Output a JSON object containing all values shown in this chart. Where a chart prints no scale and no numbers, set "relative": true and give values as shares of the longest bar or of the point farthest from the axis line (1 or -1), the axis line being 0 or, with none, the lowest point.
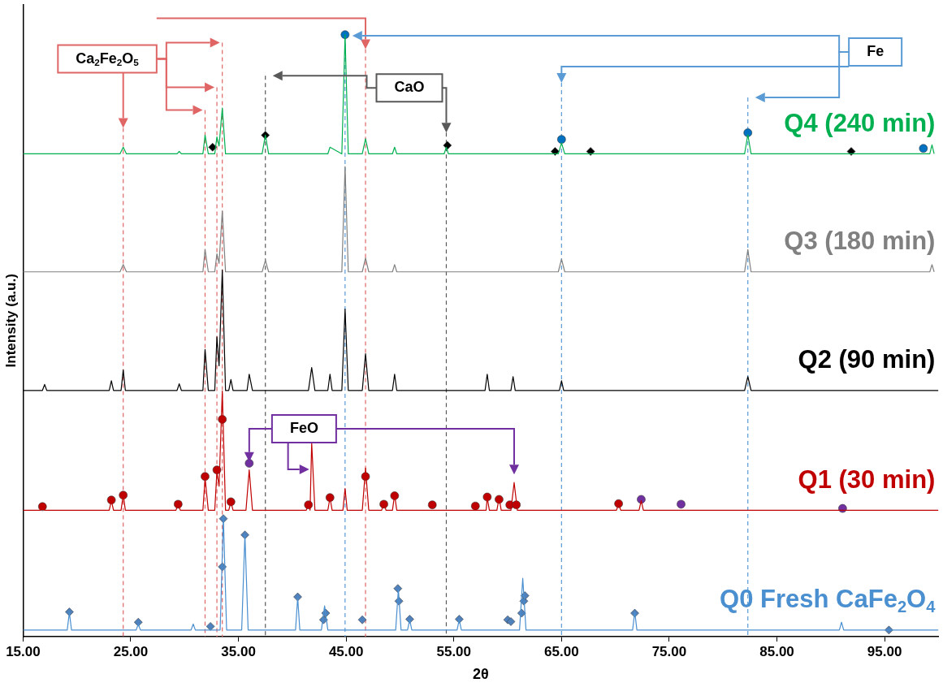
{
  "chart_data": {
    "type": "line",
    "relative": true,
    "xlabel": "2θ",
    "ylabel": "Intensity (a.u.)",
    "xlim": [
      15,
      100
    ],
    "xticks": [
      {
        "value": 15,
        "label": "15.00"
      },
      {
        "value": 25,
        "label": "25.00"
      },
      {
        "value": 35,
        "label": "35.00"
      },
      {
        "value": 45,
        "label": "45.00"
      },
      {
        "value": 55,
        "label": "55.00"
      },
      {
        "value": 65,
        "label": "65.00"
      },
      {
        "value": 75,
        "label": "75.00"
      },
      {
        "value": 85,
        "label": "85.00"
      },
      {
        "value": 95,
        "label": "95.00"
      }
    ],
    "series": [
      {
        "name": "Q4 (240 min)",
        "color": "#00b050",
        "x": [
          15,
          24.0,
          24.3,
          24.6,
          29.3,
          29.5,
          29.7,
          31.7,
          31.9,
          32.2,
          32.8,
          33.0,
          33.2,
          33.5,
          33.8,
          37.2,
          37.5,
          37.8,
          43.3,
          43.5,
          44.6,
          44.9,
          45.2,
          46.5,
          46.8,
          47.1,
          49.3,
          49.5,
          49.7,
          54.1,
          54.3,
          54.5,
          64.7,
          65.0,
          65.3,
          82.0,
          82.3,
          82.6,
          99.2,
          99.4,
          99.6
        ],
        "values": [
          0.802,
          0.802,
          0.813,
          0.802,
          0.802,
          0.806,
          0.802,
          0.802,
          0.833,
          0.802,
          0.802,
          0.83,
          0.815,
          0.878,
          0.802,
          0.802,
          0.833,
          0.802,
          0.802,
          0.813,
          0.802,
          1.0,
          0.802,
          0.802,
          0.827,
          0.802,
          0.802,
          0.813,
          0.802,
          0.802,
          0.813,
          0.802,
          0.802,
          0.82,
          0.802,
          0.802,
          0.834,
          0.802,
          0.802,
          0.817,
          0.802
        ]
      },
      {
        "name": "Q3 (180 min)",
        "color": "#808080",
        "x": [
          15,
          24.0,
          24.3,
          24.6,
          31.7,
          31.9,
          32.2,
          32.8,
          33.0,
          33.2,
          33.5,
          33.8,
          37.2,
          37.5,
          37.8,
          44.6,
          44.9,
          45.2,
          46.5,
          46.8,
          47.1,
          49.3,
          49.5,
          49.7,
          64.7,
          65.0,
          65.3,
          82.0,
          82.3,
          82.6,
          99.2,
          99.4,
          99.6
        ],
        "values": [
          0.606,
          0.606,
          0.618,
          0.606,
          0.606,
          0.643,
          0.606,
          0.606,
          0.636,
          0.62,
          0.707,
          0.606,
          0.606,
          0.625,
          0.606,
          0.606,
          0.781,
          0.606,
          0.606,
          0.629,
          0.606,
          0.606,
          0.618,
          0.606,
          0.606,
          0.627,
          0.606,
          0.606,
          0.643,
          0.606,
          0.606,
          0.618,
          0.606
        ]
      },
      {
        "name": "Q2 (90 min)",
        "color": "#000000",
        "x": [
          15,
          16.8,
          17.0,
          17.2,
          23.0,
          23.2,
          23.4,
          24.1,
          24.3,
          24.5,
          29.3,
          29.5,
          29.7,
          31.7,
          31.9,
          32.2,
          32.8,
          33.0,
          33.2,
          33.5,
          33.8,
          34.1,
          34.3,
          34.5,
          35.8,
          36.0,
          36.3,
          41.5,
          41.8,
          42.1,
          43.3,
          43.5,
          43.7,
          44.6,
          44.9,
          45.2,
          46.5,
          46.8,
          47.1,
          49.3,
          49.5,
          49.7,
          57.9,
          58.1,
          58.3,
          60.3,
          60.5,
          60.7,
          64.8,
          65.0,
          65.2,
          82.0,
          82.3,
          82.6,
          100
        ],
        "values": [
          0.409,
          0.409,
          0.419,
          0.409,
          0.409,
          0.425,
          0.409,
          0.409,
          0.443,
          0.409,
          0.409,
          0.42,
          0.409,
          0.409,
          0.477,
          0.409,
          0.409,
          0.498,
          0.45,
          0.609,
          0.409,
          0.409,
          0.427,
          0.409,
          0.409,
          0.436,
          0.409,
          0.409,
          0.447,
          0.409,
          0.409,
          0.436,
          0.409,
          0.409,
          0.544,
          0.409,
          0.409,
          0.47,
          0.409,
          0.409,
          0.436,
          0.409,
          0.409,
          0.436,
          0.409,
          0.409,
          0.432,
          0.409,
          0.409,
          0.425,
          0.409,
          0.409,
          0.432,
          0.409,
          0.409
        ]
      },
      {
        "name": "Q1 (30 min)",
        "color": "#c00000",
        "x": [
          15,
          16.6,
          16.8,
          17.0,
          23.0,
          23.2,
          23.4,
          24.1,
          24.3,
          24.5,
          29.2,
          29.4,
          29.6,
          31.7,
          31.9,
          32.2,
          32.8,
          33.0,
          33.2,
          33.5,
          33.8,
          34.1,
          34.3,
          34.5,
          35.7,
          36.0,
          36.3,
          41.3,
          41.5,
          41.65,
          41.8,
          42.1,
          43.3,
          43.5,
          43.7,
          44.7,
          44.9,
          45.1,
          46.5,
          46.8,
          47.1,
          48.3,
          48.5,
          48.7,
          49.3,
          49.5,
          49.7,
          58.0,
          58.1,
          58.3,
          59.0,
          59.2,
          59.4,
          60.3,
          60.6,
          60.9,
          70.1,
          70.3,
          70.5,
          72.2,
          72.4,
          72.6,
          100
        ],
        "values": [
          0.21,
          0.21,
          0.219,
          0.21,
          0.21,
          0.226,
          0.21,
          0.21,
          0.236,
          0.21,
          0.21,
          0.221,
          0.21,
          0.21,
          0.264,
          0.21,
          0.21,
          0.274,
          0.25,
          0.408,
          0.21,
          0.21,
          0.224,
          0.21,
          0.21,
          0.277,
          0.21,
          0.21,
          0.22,
          0.21,
          0.322,
          0.21,
          0.21,
          0.231,
          0.21,
          0.21,
          0.246,
          0.21,
          0.21,
          0.28,
          0.21,
          0.21,
          0.223,
          0.21,
          0.21,
          0.236,
          0.21,
          0.21,
          0.231,
          0.21,
          0.21,
          0.231,
          0.21,
          0.21,
          0.256,
          0.21,
          0.21,
          0.22,
          0.21,
          0.21,
          0.226,
          0.21,
          0.21
        ]
      },
      {
        "name": "Q0 Fresh CaFe$_{2}$O$_{4}$",
        "color": "#4a8fd0",
        "x": [
          15,
          19.1,
          19.3,
          19.5,
          25.5,
          25.7,
          25.9,
          30.6,
          30.8,
          31.0,
          33.3,
          33.6,
          33.9,
          35.3,
          35.6,
          35.9,
          40.3,
          40.5,
          40.7,
          42.7,
          43.0,
          43.3,
          49.6,
          49.85,
          50.1,
          50.7,
          50.9,
          51.1,
          55.3,
          55.5,
          55.7,
          61.1,
          61.4,
          61.7,
          71.6,
          71.8,
          72.0,
          90.8,
          91.0,
          91.2,
          100
        ],
        "values": [
          0.011,
          0.011,
          0.04,
          0.011,
          0.011,
          0.021,
          0.011,
          0.011,
          0.021,
          0.011,
          0.011,
          0.199,
          0.011,
          0.011,
          0.169,
          0.011,
          0.011,
          0.065,
          0.011,
          0.011,
          0.051,
          0.011,
          0.011,
          0.079,
          0.011,
          0.011,
          0.028,
          0.011,
          0.011,
          0.028,
          0.011,
          0.011,
          0.097,
          0.011,
          0.011,
          0.041,
          0.011,
          0.011,
          0.024,
          0.011,
          0.011
        ]
      },
      {
        "type": "scatter",
        "marker": "diamond",
        "color": "#4f81bd",
        "x": [
          19.3,
          25.7,
          32.4,
          33.5,
          33.6,
          35.6,
          40.5,
          42.9,
          43.1,
          46.5,
          49.8,
          49.9,
          50.9,
          55.5,
          60.0,
          60.3,
          61.3,
          61.5,
          61.6,
          71.8,
          95.4
        ],
        "values": [
          0.041,
          0.024,
          0.017,
          0.116,
          0.196,
          0.169,
          0.066,
          0.028,
          0.039,
          0.028,
          0.08,
          0.059,
          0.029,
          0.029,
          0.028,
          0.025,
          0.039,
          0.059,
          0.068,
          0.039,
          0.011
        ]
      },
      {
        "type": "scatter",
        "marker": "circle",
        "color": "#c00000",
        "x": [
          16.8,
          23.2,
          24.3,
          29.4,
          31.9,
          33.0,
          33.5,
          34.3,
          41.5,
          43.5,
          46.8,
          48.5,
          49.5,
          53.0,
          57.0,
          58.1,
          59.2,
          60.2,
          60.8,
          70.3
        ],
        "values": [
          0.216,
          0.227,
          0.235,
          0.22,
          0.266,
          0.277,
          0.361,
          0.224,
          0.219,
          0.231,
          0.266,
          0.22,
          0.234,
          0.219,
          0.217,
          0.232,
          0.228,
          0.219,
          0.219,
          0.221
        ]
      },
      {
        "type": "scatter",
        "marker": "circle",
        "color": "#7030a0",
        "x": [
          36.0,
          72.4,
          76.1,
          91.1
        ],
        "values": [
          0.288,
          0.228,
          0.22,
          0.213
        ]
      },
      {
        "type": "scatter",
        "marker": "diamond",
        "color": "#000000",
        "x": [
          32.6,
          37.5,
          54.4,
          64.4,
          67.7,
          91.9
        ],
        "values": [
          0.813,
          0.833,
          0.816,
          0.806,
          0.806,
          0.806
        ]
      },
      {
        "type": "scatter",
        "marker": "circle",
        "color": "#0070c0",
        "x": [
          44.9,
          65.0,
          82.3,
          98.6
        ],
        "values": [
          1.0,
          0.826,
          0.837,
          0.811
        ]
      }
    ],
    "ref_lines": [
      {
        "axis": "x",
        "value": 24.3,
        "color": "#e06666",
        "line_style": "dashed"
      },
      {
        "axis": "x",
        "value": 31.9,
        "color": "#e06666",
        "line_style": "dashed"
      },
      {
        "axis": "x",
        "value": 33.0,
        "color": "#e06666",
        "line_style": "dashed"
      },
      {
        "axis": "x",
        "value": 33.5,
        "color": "#e06666",
        "line_style": "dashed"
      },
      {
        "axis": "x",
        "value": 46.8,
        "color": "#e06666",
        "line_style": "dashed"
      },
      {
        "axis": "x",
        "value": 37.5,
        "color": "#595959",
        "line_style": "dashed"
      },
      {
        "axis": "x",
        "value": 54.3,
        "color": "#595959",
        "line_style": "dashed"
      },
      {
        "axis": "x",
        "value": 44.9,
        "color": "#5b9bd5",
        "line_style": "dashed"
      },
      {
        "axis": "x",
        "value": 65.0,
        "color": "#5b9bd5",
        "line_style": "dashed"
      },
      {
        "axis": "x",
        "value": 82.3,
        "color": "#5b9bd5",
        "line_style": "dashed"
      }
    ],
    "annotations": [
      "Ca$_{2}$Fe$_{2}$O$_{5}$",
      "CaO",
      "Fe",
      "FeO"
    ]
  }
}
